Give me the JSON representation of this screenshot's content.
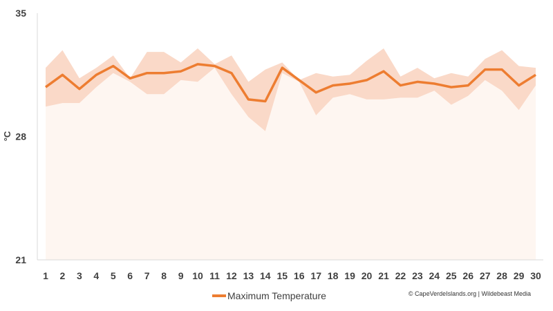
{
  "chart_data": {
    "type": "line",
    "title": "",
    "xlabel": "",
    "ylabel": "°C",
    "x": [
      1,
      2,
      3,
      4,
      5,
      6,
      7,
      8,
      9,
      10,
      11,
      12,
      13,
      14,
      15,
      16,
      17,
      18,
      19,
      20,
      21,
      22,
      23,
      24,
      25,
      26,
      27,
      28,
      29,
      30
    ],
    "ylim": [
      21,
      35
    ],
    "yticks": [
      21,
      28,
      35
    ],
    "grid": false,
    "legend_position": "bottom-center",
    "series": [
      {
        "name": "Maximum Temperature",
        "color": "#ED7D31",
        "values": [
          30.8,
          31.5,
          30.7,
          31.5,
          32.0,
          31.3,
          31.6,
          31.6,
          31.7,
          32.1,
          32.0,
          31.6,
          30.1,
          30.0,
          31.9,
          31.2,
          30.5,
          30.9,
          31.0,
          31.2,
          31.7,
          30.9,
          31.1,
          31.0,
          30.8,
          30.9,
          31.8,
          31.8,
          30.9,
          31.5
        ]
      }
    ],
    "band": {
      "color": "#FAD9C8",
      "upper": [
        31.9,
        32.9,
        31.3,
        31.9,
        32.6,
        31.3,
        32.8,
        32.8,
        32.2,
        33.0,
        32.1,
        32.6,
        31.1,
        31.8,
        32.2,
        31.2,
        31.6,
        31.4,
        31.5,
        32.3,
        33.0,
        31.4,
        31.9,
        31.3,
        31.6,
        31.4,
        32.4,
        32.9,
        32.0,
        31.9
      ],
      "lower": [
        29.7,
        29.9,
        29.9,
        30.8,
        31.6,
        31.1,
        30.4,
        30.4,
        31.2,
        31.1,
        31.9,
        30.4,
        29.1,
        28.3,
        31.6,
        31.1,
        29.2,
        30.2,
        30.4,
        30.1,
        30.1,
        30.2,
        30.2,
        30.6,
        29.8,
        30.3,
        31.2,
        30.6,
        29.5,
        30.9
      ]
    },
    "credit": "© CapeVerdeIslands.org | Wildebeast Media"
  }
}
